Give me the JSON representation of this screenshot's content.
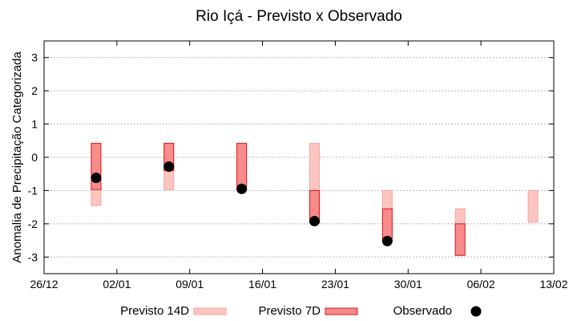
{
  "chart_data": {
    "type": "bar",
    "title": "Rio Içá - Previsto x Observado",
    "ylabel": "Anomalia de Precipitação Categorizada",
    "xlabel": "",
    "ylim": [
      -3.5,
      3.5
    ],
    "yticks": [
      -3,
      -2,
      -1,
      0,
      1,
      2,
      3
    ],
    "xtick_labels": [
      "26/12",
      "02/01",
      "09/01",
      "16/01",
      "23/01",
      "30/01",
      "06/02",
      "13/02"
    ],
    "grid": true,
    "legend": "bottom",
    "colors": {
      "previsto_14d_fill": "#fcc5c0",
      "previsto_14d_stroke": "#f4a3a0",
      "previsto_7d_fill": "#f88b8b",
      "previsto_7d_stroke": "#d91616",
      "observado": "#000000"
    },
    "series": [
      {
        "name": "Previsto 14D",
        "ranges": [
          {
            "date": "31/12",
            "low": -1.45,
            "high": 0.42
          },
          {
            "date": "07/01",
            "low": -0.97,
            "high": 0.42
          },
          {
            "date": "14/01",
            "low": -0.97,
            "high": 0.42
          },
          {
            "date": "21/01",
            "low": -1.97,
            "high": 0.42
          },
          {
            "date": "28/01",
            "low": -2.5,
            "high": -1.0
          },
          {
            "date": "04/02",
            "low": -2.95,
            "high": -1.55
          },
          {
            "date": "11/02",
            "low": -1.95,
            "high": -1.0
          }
        ]
      },
      {
        "name": "Previsto 7D",
        "ranges": [
          {
            "date": "31/12",
            "low": -0.97,
            "high": 0.42
          },
          {
            "date": "07/01",
            "low": -0.4,
            "high": 0.42
          },
          {
            "date": "14/01",
            "low": -0.97,
            "high": 0.42
          },
          {
            "date": "21/01",
            "low": -1.97,
            "high": -1.0
          },
          {
            "date": "28/01",
            "low": -2.5,
            "high": -1.55
          },
          {
            "date": "04/02",
            "low": -2.95,
            "high": -2.0
          }
        ]
      },
      {
        "name": "Observado",
        "points": [
          {
            "date": "31/12",
            "value": -0.62
          },
          {
            "date": "07/01",
            "value": -0.28
          },
          {
            "date": "14/01",
            "value": -0.95
          },
          {
            "date": "21/01",
            "value": -1.92
          },
          {
            "date": "28/01",
            "value": -2.52
          },
          {
            "date": "04/02",
            "value": null
          },
          {
            "date": "11/02",
            "value": null
          }
        ]
      }
    ]
  }
}
